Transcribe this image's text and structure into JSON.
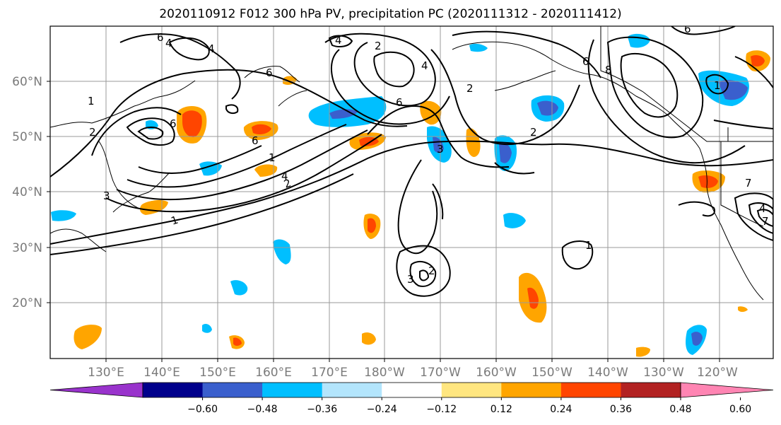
{
  "title": "2020110912 F012 300 hPa PV, precipitation PC (2020111312 - 2020111412)",
  "axes": {
    "lat_labels": [
      "20°N",
      "30°N",
      "40°N",
      "50°N",
      "60°N"
    ],
    "lon_labels": [
      "130°E",
      "140°E",
      "150°E",
      "160°E",
      "170°E",
      "180°W",
      "170°W",
      "160°W",
      "150°W",
      "140°W",
      "130°W",
      "120°W"
    ]
  },
  "colorbar": {
    "colors": [
      "#9933cc",
      "#00008b",
      "#3a5fcd",
      "#00bfff",
      "#b3e5fc",
      "#ffffff",
      "#ffe680",
      "#ffa500",
      "#ff4500",
      "#b22222",
      "#ff85b3"
    ],
    "tick_labels": [
      "−0.60",
      "−0.48",
      "−0.36",
      "−0.24",
      "−0.12",
      "0.12",
      "0.24",
      "0.36",
      "0.48",
      "0.60"
    ]
  },
  "contour_labels": [
    "1",
    "2",
    "2",
    "4",
    "6",
    "1",
    "4",
    "6",
    "2",
    "3",
    "4",
    "6",
    "6",
    "2",
    "3",
    "1",
    "2",
    "4",
    "6",
    "8",
    "6",
    "4",
    "1",
    "2",
    "3",
    "1",
    "4",
    "6",
    "7",
    "7"
  ]
}
